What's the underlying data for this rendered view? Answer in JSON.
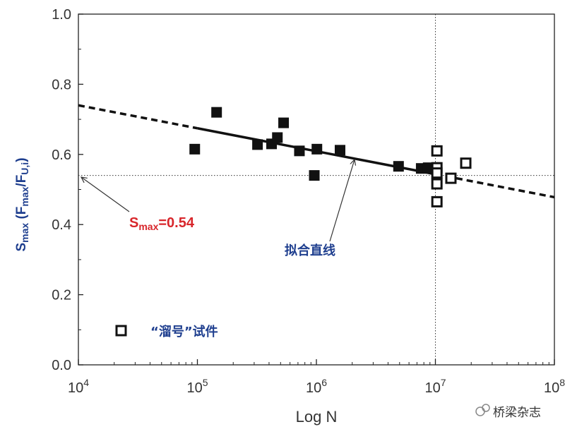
{
  "chart_data": {
    "type": "scatter",
    "xscale": "log",
    "xlim": [
      10000,
      100000000
    ],
    "ylim": [
      0.0,
      1.0
    ],
    "xlabel": "Log N",
    "ylabel": {
      "prefix": "S",
      "prefix_sub": "max",
      "middle": " (F",
      "middle_sub": "max",
      "slash": "/F",
      "end_sub": "U,i",
      "close": ")"
    },
    "y_ticks": [
      0.0,
      0.2,
      0.4,
      0.6,
      0.8,
      1.0
    ],
    "y_tick_labels": [
      "0.0",
      "0.2",
      "0.4",
      "0.6",
      "0.8",
      "1.0"
    ],
    "x_ticks": [
      10000,
      100000,
      1000000,
      10000000,
      100000000
    ],
    "x_tick_labels": [
      {
        "base": "10",
        "exp": "4"
      },
      {
        "base": "10",
        "exp": "5"
      },
      {
        "base": "10",
        "exp": "6"
      },
      {
        "base": "10",
        "exp": "7"
      },
      {
        "base": "10",
        "exp": "8"
      }
    ],
    "series": [
      {
        "name": "filled",
        "marker": "filled-square",
        "points": [
          {
            "x": 95000,
            "y": 0.615
          },
          {
            "x": 145000,
            "y": 0.72
          },
          {
            "x": 320000,
            "y": 0.628
          },
          {
            "x": 420000,
            "y": 0.63
          },
          {
            "x": 470000,
            "y": 0.648
          },
          {
            "x": 530000,
            "y": 0.69
          },
          {
            "x": 720000,
            "y": 0.61
          },
          {
            "x": 960000,
            "y": 0.54
          },
          {
            "x": 1010000,
            "y": 0.615
          },
          {
            "x": 1580000,
            "y": 0.612
          },
          {
            "x": 4900000,
            "y": 0.566
          },
          {
            "x": 7600000,
            "y": 0.56
          },
          {
            "x": 8700000,
            "y": 0.562
          }
        ]
      },
      {
        "name": "“溜号”试件",
        "marker": "open-square",
        "points": [
          {
            "x": 10300000,
            "y": 0.61
          },
          {
            "x": 10300000,
            "y": 0.562
          },
          {
            "x": 10300000,
            "y": 0.547
          },
          {
            "x": 10300000,
            "y": 0.516
          },
          {
            "x": 10300000,
            "y": 0.465
          },
          {
            "x": 13500000,
            "y": 0.532
          },
          {
            "x": 18000000,
            "y": 0.575
          }
        ]
      }
    ],
    "fit_line": {
      "label": "拟合直线",
      "solid_from": 100000,
      "solid_to": 10000000,
      "dashed_from": 10000,
      "dashed_to": 100000000,
      "y_at_1e4": 0.74,
      "y_at_1e8": 0.478
    },
    "reference_lines": {
      "horizontal_y": 0.54,
      "vertical_x": 10000000
    },
    "annotations": {
      "smax": {
        "prefix": "S",
        "sub": "max",
        "value": "=0.54",
        "color": "#d8262b"
      },
      "fit": {
        "text": "拟合直线",
        "color": "#1f3f8f"
      }
    },
    "legend": {
      "entries": [
        "“溜号”试件"
      ],
      "placement": "bottom-left"
    }
  },
  "watermark": {
    "text": "桥梁杂志"
  }
}
